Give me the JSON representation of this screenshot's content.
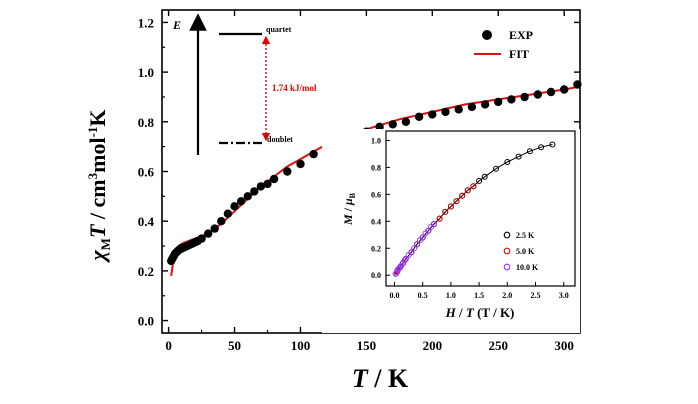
{
  "chart_data": {
    "main": {
      "type": "scatter",
      "xlabel": {
        "main": "T",
        "rest": " / K"
      },
      "ylabel": {
        "chi": "χ",
        "sub": "M",
        "T": "T",
        "unit1": " / cm",
        "exp1": "3",
        "unit2": "mol",
        "exp2": "-1",
        "unit3": "K"
      },
      "xlim": [
        -5,
        312
      ],
      "ylim": [
        -0.05,
        1.25
      ],
      "xticks": [
        "0",
        "50",
        "100",
        "150",
        "200",
        "250",
        "300"
      ],
      "yticks": [
        "0.0",
        "0.2",
        "0.4",
        "0.6",
        "0.8",
        "1.0",
        "1.2"
      ],
      "series": [
        {
          "name": "EXP",
          "kind": "markers",
          "color": "#000000",
          "x": [
            2,
            3,
            4,
            5,
            6,
            7,
            8,
            9,
            10,
            12,
            14,
            16,
            18,
            20,
            22,
            25,
            30,
            35,
            40,
            45,
            50,
            55,
            60,
            65,
            70,
            75,
            80,
            90,
            100,
            110,
            120,
            130,
            140,
            150,
            160,
            170,
            180,
            190,
            200,
            210,
            220,
            230,
            240,
            250,
            260,
            270,
            280,
            290,
            300,
            310
          ],
          "y": [
            0.24,
            0.25,
            0.26,
            0.27,
            0.275,
            0.28,
            0.285,
            0.29,
            0.29,
            0.295,
            0.3,
            0.305,
            0.31,
            0.315,
            0.32,
            0.33,
            0.35,
            0.37,
            0.4,
            0.43,
            0.46,
            0.48,
            0.5,
            0.52,
            0.54,
            0.55,
            0.57,
            0.6,
            0.63,
            0.67,
            0.7,
            0.72,
            0.74,
            0.76,
            0.78,
            0.79,
            0.8,
            0.82,
            0.83,
            0.84,
            0.85,
            0.86,
            0.87,
            0.88,
            0.89,
            0.9,
            0.91,
            0.92,
            0.93,
            0.95
          ]
        },
        {
          "name": "FIT",
          "kind": "line",
          "color": "#e01010",
          "x": [
            2,
            4,
            6,
            8,
            10,
            15,
            20,
            25,
            30,
            35,
            40,
            50,
            60,
            70,
            80,
            90,
            100,
            110,
            120,
            130,
            140,
            150,
            175,
            200,
            225,
            250,
            275,
            300,
            310
          ],
          "y": [
            0.18,
            0.26,
            0.29,
            0.3,
            0.31,
            0.32,
            0.33,
            0.34,
            0.35,
            0.37,
            0.39,
            0.44,
            0.49,
            0.54,
            0.58,
            0.62,
            0.65,
            0.68,
            0.71,
            0.73,
            0.75,
            0.77,
            0.81,
            0.84,
            0.87,
            0.89,
            0.91,
            0.93,
            0.94
          ]
        }
      ],
      "legend": {
        "placement": "top-right"
      },
      "energy_diagram": {
        "axis_label": "E",
        "upper_level": "quartet",
        "lower_level": "doublet",
        "gap_label": "1.74 kJ/mol",
        "gap_color": "#e00000"
      }
    },
    "inset": {
      "type": "scatter",
      "xlabel": {
        "H": "H",
        "sep1": " / ",
        "T": "T",
        "rest": " (T / K)"
      },
      "ylabel": {
        "M": "M",
        "sep": " / ",
        "mu": "μ",
        "sub": "B"
      },
      "xlim": [
        -0.15,
        3.2
      ],
      "ylim": [
        -0.08,
        1.07
      ],
      "xticks": [
        "0.0",
        "0.5",
        "1.0",
        "1.5",
        "2.0",
        "2.5",
        "3.0"
      ],
      "yticks": [
        "0.0",
        "0.2",
        "0.4",
        "0.6",
        "0.8",
        "1.0"
      ],
      "series": [
        {
          "name": "2.5 K",
          "color": "#000000",
          "x": [
            0.05,
            0.1,
            0.15,
            0.2,
            0.3,
            0.4,
            0.5,
            0.6,
            0.7,
            0.8,
            0.9,
            1.0,
            1.1,
            1.2,
            1.3,
            1.4,
            1.5,
            1.6,
            1.8,
            2.0,
            2.2,
            2.4,
            2.6,
            2.8
          ],
          "y": [
            0.03,
            0.06,
            0.09,
            0.12,
            0.17,
            0.23,
            0.28,
            0.33,
            0.38,
            0.42,
            0.47,
            0.51,
            0.55,
            0.59,
            0.63,
            0.66,
            0.7,
            0.73,
            0.79,
            0.84,
            0.88,
            0.92,
            0.95,
            0.97
          ]
        },
        {
          "name": "5.0 K",
          "color": "#e00000",
          "x": [
            0.05,
            0.1,
            0.15,
            0.2,
            0.3,
            0.4,
            0.5,
            0.6,
            0.7,
            0.8,
            0.9,
            1.0,
            1.1,
            1.2,
            1.3,
            1.4
          ],
          "y": [
            0.03,
            0.06,
            0.09,
            0.12,
            0.17,
            0.23,
            0.28,
            0.33,
            0.38,
            0.42,
            0.47,
            0.51,
            0.55,
            0.59,
            0.63,
            0.66
          ]
        },
        {
          "name": "10.0 K",
          "color": "#9b30ff",
          "x": [
            0.02,
            0.04,
            0.06,
            0.08,
            0.1,
            0.12,
            0.15,
            0.18,
            0.2,
            0.25,
            0.3,
            0.35,
            0.4,
            0.45,
            0.5,
            0.55,
            0.6,
            0.65,
            0.7
          ],
          "y": [
            0.01,
            0.02,
            0.04,
            0.05,
            0.06,
            0.07,
            0.09,
            0.11,
            0.12,
            0.15,
            0.17,
            0.2,
            0.23,
            0.26,
            0.28,
            0.31,
            0.33,
            0.36,
            0.38
          ]
        }
      ],
      "legend": {
        "placement": "bottom-right"
      }
    }
  }
}
